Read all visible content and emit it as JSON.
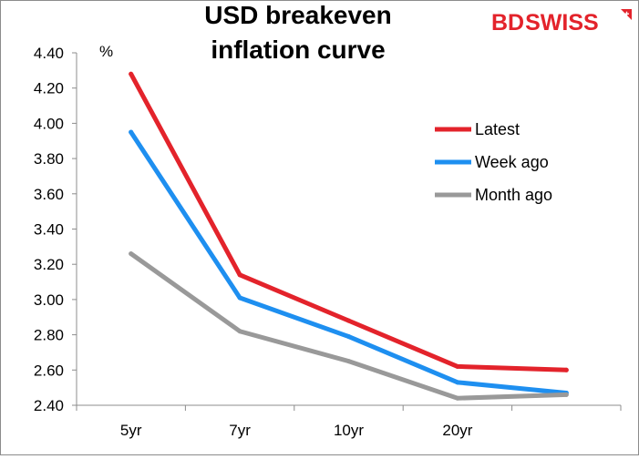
{
  "chart_data": {
    "type": "line",
    "title": "USD breakeven inflation curve",
    "title_lines": [
      "USD breakeven",
      "inflation curve"
    ],
    "unit": "%",
    "categories": [
      "5yr",
      "7yr",
      "10yr",
      "20yr",
      ""
    ],
    "ylim": [
      2.4,
      4.4
    ],
    "yticks": [
      "4.40",
      "4.20",
      "4.00",
      "3.80",
      "3.60",
      "3.40",
      "3.20",
      "3.00",
      "2.80",
      "2.60",
      "2.40"
    ],
    "grid": false,
    "legend_position": "right",
    "series": [
      {
        "name": "Latest",
        "color": "#e3232b",
        "values": [
          4.28,
          3.14,
          2.88,
          2.62,
          2.6
        ]
      },
      {
        "name": "Week ago",
        "color": "#1e8ff0",
        "values": [
          3.95,
          3.01,
          2.79,
          2.53,
          2.47
        ]
      },
      {
        "name": "Month ago",
        "color": "#999999",
        "values": [
          3.26,
          2.82,
          2.65,
          2.44,
          2.46
        ]
      }
    ]
  },
  "brand": {
    "logo_text": "BDSWISS",
    "logo_text_part1": "BD",
    "logo_text_part2": "SWISS",
    "accent": "#e3232b"
  }
}
